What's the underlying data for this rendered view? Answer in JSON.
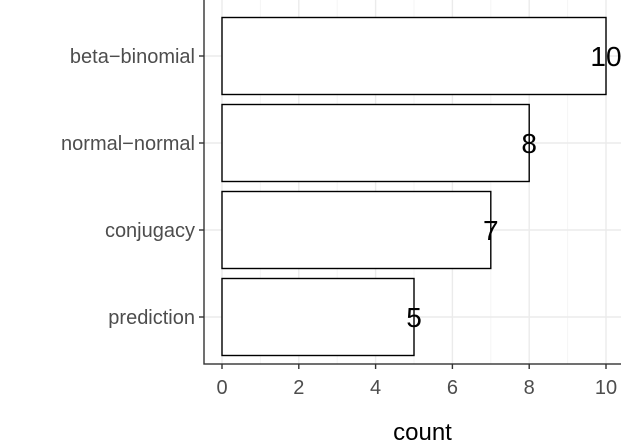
{
  "chart_data": {
    "type": "bar",
    "orientation": "horizontal",
    "categories": [
      "beta−binomial",
      "normal−normal",
      "conjugacy",
      "prediction"
    ],
    "values": [
      10,
      8,
      7,
      5
    ],
    "data_labels": [
      "10",
      "8",
      "7",
      "5"
    ],
    "title": "",
    "xlabel": "count",
    "ylabel": "",
    "xlim": [
      -0.5,
      10.5
    ],
    "x_ticks": [
      0,
      2,
      4,
      6,
      8,
      10
    ],
    "x_tick_labels": [
      "0",
      "2",
      "4",
      "6",
      "8",
      "10"
    ],
    "grid": true,
    "legend": "none",
    "colors": {
      "bar_fill": "#ffffff",
      "bar_stroke": "#000000",
      "grid_major": "#ebebeb",
      "grid_minor": "#f5f5f5",
      "panel_border": "#333333",
      "tick_label": "#4d4d4d",
      "axis_title": "#000000"
    }
  }
}
